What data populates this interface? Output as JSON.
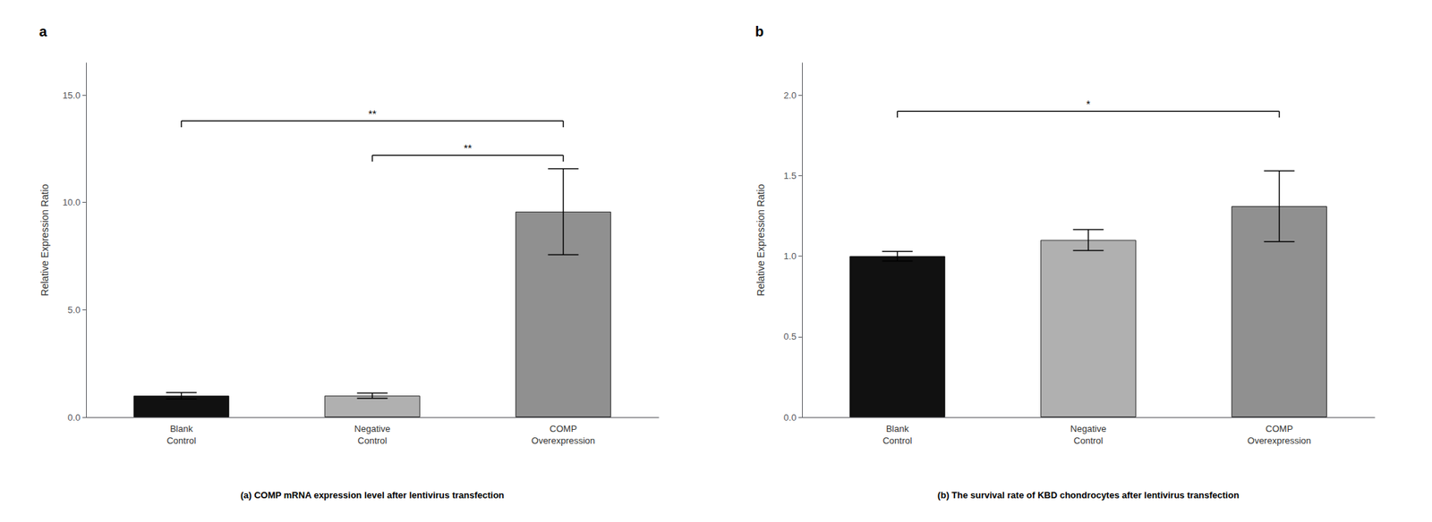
{
  "chart_data": [
    {
      "type": "bar",
      "title": "a",
      "caption": "(a) COMP mRNA expression level after lentivirus transfection",
      "categories": [
        "Blank\nControl",
        "Negative\nControl",
        "COMP\nOverexpression"
      ],
      "values": [
        1.0,
        1.0,
        9.57
      ],
      "errors": [
        0.15,
        0.12,
        2.0
      ],
      "colors": [
        "#111111",
        "#b0b0b0",
        "#909090"
      ],
      "ylabel": "Relative Expression Ratio",
      "ylim": [
        0,
        16.5
      ],
      "yticks": [
        {
          "value": 0.0,
          "label": "0.0"
        },
        {
          "value": 5.0,
          "label": "5.0"
        },
        {
          "value": 10.0,
          "label": "10.0"
        },
        {
          "value": 15.0,
          "label": "15.0"
        }
      ],
      "grid": false,
      "annotations": [
        {
          "text": "**",
          "x1": "Blank\nControl",
          "x2": "COMP\nOverexpression",
          "y": 13.8
        },
        {
          "text": "**",
          "x1": "Negative\nControl",
          "x2": "COMP\nOverexpression",
          "y": 12.2
        }
      ]
    },
    {
      "type": "bar",
      "title": "b",
      "caption": "(b) The survival rate of KBD chondrocytes after lentivirus transfection",
      "categories": [
        "Blank\nControl",
        "Negative\nControl",
        "COMP\nOverexpression"
      ],
      "values": [
        1.0,
        1.1,
        1.31
      ],
      "errors": [
        0.03,
        0.065,
        0.22
      ],
      "colors": [
        "#111111",
        "#b0b0b0",
        "#909090"
      ],
      "ylabel": "Relative Expression Ratio",
      "ylim": [
        0,
        2.2
      ],
      "yticks": [
        {
          "value": 0.0,
          "label": "0.0"
        },
        {
          "value": 0.5,
          "label": "0.5"
        },
        {
          "value": 1.0,
          "label": "1.0"
        },
        {
          "value": 1.5,
          "label": "1.5"
        },
        {
          "value": 2.0,
          "label": "2.0"
        }
      ],
      "grid": false,
      "annotations": [
        {
          "text": "*",
          "x1": "Blank\nControl",
          "x2": "COMP\nOverexpression",
          "y": 1.9
        }
      ]
    }
  ]
}
